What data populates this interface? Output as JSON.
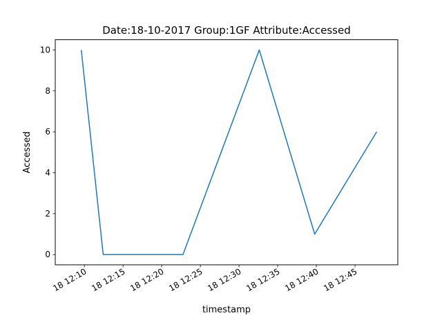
{
  "chart_data": {
    "type": "line",
    "title": "Date:18-10-2017  Group:1GF Attribute:Accessed",
    "xlabel": "timestamp",
    "ylabel": "Accessed",
    "x_ticks": [
      "18 12:10",
      "18 12:15",
      "18 12:20",
      "18 12:25",
      "18 12:30",
      "18 12:35",
      "18 12:40",
      "18 12:45"
    ],
    "y_ticks": [
      "0",
      "2",
      "4",
      "6",
      "8",
      "10"
    ],
    "xlim": [
      "2017-10-18 12:06:14",
      "2017-10-18 12:50:32"
    ],
    "ylim": [
      -0.5,
      10.5
    ],
    "grid": false,
    "line_color": "#1f77b4",
    "series": [
      {
        "x": [
          "2017-10-18 12:09:36",
          "2017-10-18 12:12:26",
          "2017-10-18 12:22:45",
          "2017-10-18 12:32:37",
          "2017-10-18 12:39:47",
          "2017-10-18 12:47:48"
        ],
        "values": [
          10,
          0,
          0,
          10,
          1,
          6
        ]
      }
    ]
  }
}
